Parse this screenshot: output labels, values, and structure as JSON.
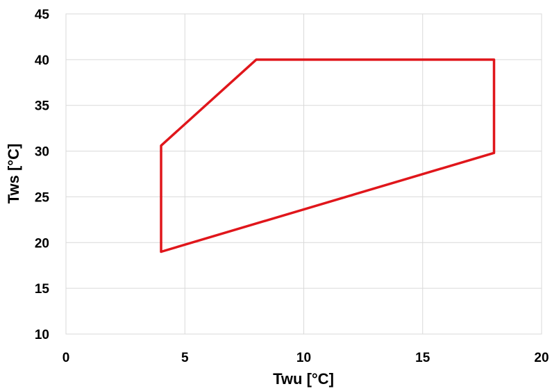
{
  "chart_data": {
    "type": "line",
    "title": "",
    "xlabel": "Twu [°C]",
    "ylabel": "Tws [°C]",
    "xlim": [
      0,
      20
    ],
    "ylim": [
      10,
      45
    ],
    "xticks": [
      0,
      5,
      10,
      15,
      20
    ],
    "yticks": [
      10,
      15,
      20,
      25,
      30,
      35,
      40,
      45
    ],
    "grid": true,
    "legend": "none",
    "series": [
      {
        "color": "#e0161b",
        "closed": true,
        "points": [
          {
            "x": 4,
            "y": 19
          },
          {
            "x": 4,
            "y": 30.6
          },
          {
            "x": 8,
            "y": 40
          },
          {
            "x": 18,
            "y": 40
          },
          {
            "x": 18,
            "y": 29.8
          },
          {
            "x": 4,
            "y": 19
          }
        ]
      }
    ]
  }
}
